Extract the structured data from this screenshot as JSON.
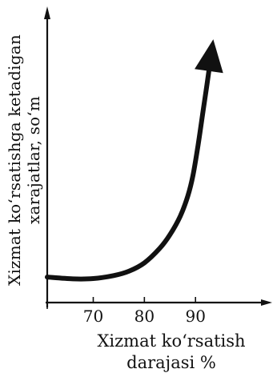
{
  "chart_data": {
    "type": "line",
    "xlabel": [
      "Xizmat ko‘rsatish",
      "darajasi %"
    ],
    "ylabel": [
      "Xizmat ko‘rsatishga ketadigan",
      "xarajatlar, so‘m"
    ],
    "x_ticks": [
      70,
      80,
      90
    ],
    "xlim": [
      61,
      105
    ],
    "ylim": [
      0,
      100
    ],
    "y_axis_ticks_labeled": false,
    "arrow_at_end": true,
    "series": [
      {
        "x": [
          61,
          66,
          70,
          74,
          77,
          80,
          83,
          85,
          87,
          88.5,
          89.5,
          90.5,
          91.5,
          92.3,
          93.0
        ],
        "y": [
          8.6,
          8.0,
          8.1,
          9.1,
          10.6,
          13.4,
          18.3,
          22.9,
          29.1,
          36.0,
          42.9,
          53.1,
          64.9,
          74.3,
          83.0
        ]
      }
    ],
    "colors": {
      "ink": "#111111",
      "background": "#ffffff"
    }
  }
}
